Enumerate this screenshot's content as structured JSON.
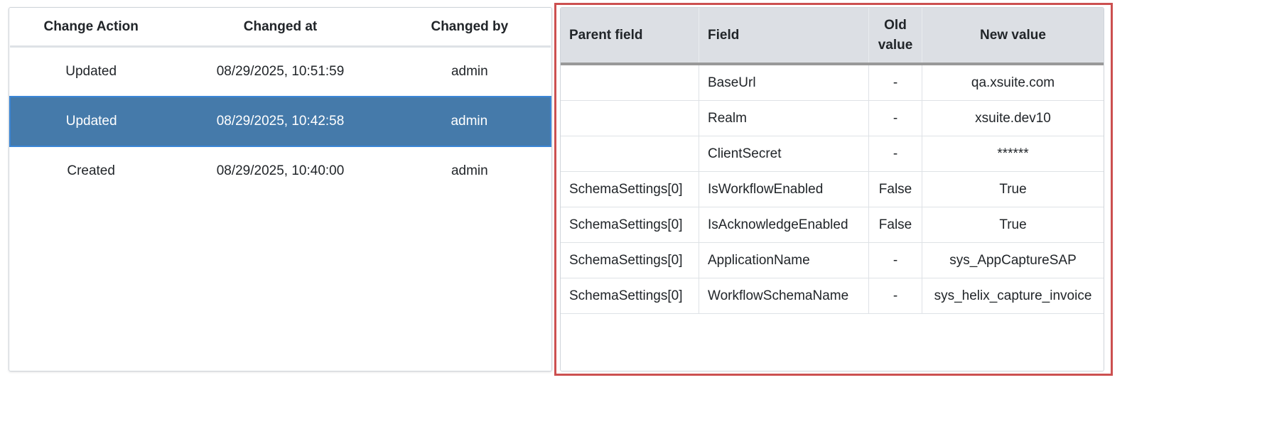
{
  "history": {
    "columns": [
      "Change Action",
      "Changed at",
      "Changed by"
    ],
    "selected_index": 1,
    "rows": [
      [
        "Updated",
        "08/29/2025, 10:51:59",
        "admin"
      ],
      [
        "Updated",
        "08/29/2025, 10:42:58",
        "admin"
      ],
      [
        "Created",
        "08/29/2025, 10:40:00",
        "admin"
      ]
    ]
  },
  "changes": {
    "columns": [
      "Parent field",
      "Field",
      "Old value",
      "New value"
    ],
    "rows": [
      [
        "",
        "BaseUrl",
        "-",
        "qa.xsuite.com"
      ],
      [
        "",
        "Realm",
        "-",
        "xsuite.dev10"
      ],
      [
        "",
        "ClientSecret",
        "-",
        "******"
      ],
      [
        "SchemaSettings[0]",
        "IsWorkflowEnabled",
        "False",
        "True"
      ],
      [
        "SchemaSettings[0]",
        "IsAcknowledgeEnabled",
        "False",
        "True"
      ],
      [
        "SchemaSettings[0]",
        "ApplicationName",
        "-",
        "sys_AppCaptureSAP"
      ],
      [
        "SchemaSettings[0]",
        "WorkflowSchemaName",
        "-",
        "sys_helix_capture_invoice"
      ]
    ]
  },
  "colors": {
    "selected_row": "#457aaa",
    "highlight_frame": "#cc5050",
    "header_bg": "#dcdfe4"
  }
}
